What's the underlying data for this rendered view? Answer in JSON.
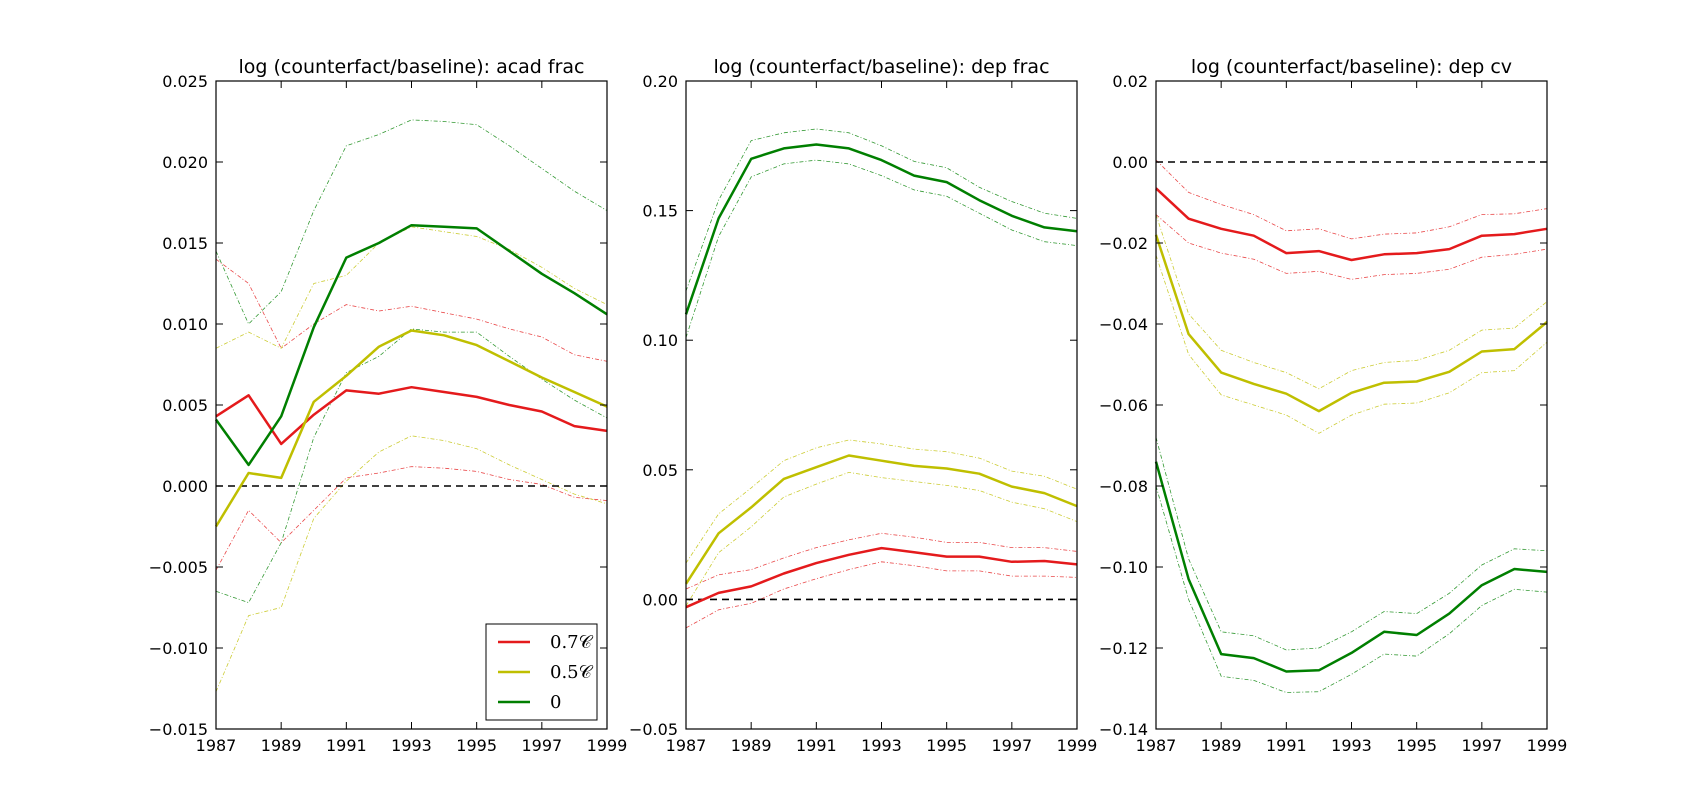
{
  "colors": {
    "red": "#e41a1c",
    "yellow": "#bfbf00",
    "green": "#007f00",
    "zero_line": "#000000"
  },
  "legend": {
    "items": [
      {
        "label": "0.7𝒞",
        "color": "#e41a1c"
      },
      {
        "label": "0.5𝒞",
        "color": "#bfbf00"
      },
      {
        "label": "0",
        "color": "#007f00"
      }
    ],
    "panel": 0,
    "placement": "lower-right"
  },
  "chart_data": [
    {
      "type": "line",
      "title": "log (counterfact/baseline): acad frac",
      "xlabel": "",
      "ylabel": "",
      "x": [
        1987,
        1988,
        1989,
        1990,
        1991,
        1992,
        1993,
        1994,
        1995,
        1996,
        1997,
        1998,
        1999
      ],
      "xlim": [
        1987,
        1999
      ],
      "xticks": [
        "1987",
        "1989",
        "1991",
        "1993",
        "1995",
        "1997",
        "1999"
      ],
      "ylim": [
        -0.015,
        0.025
      ],
      "yticks": [
        "−0.015",
        "−0.010",
        "−0.005",
        "0.000",
        "0.005",
        "0.010",
        "0.015",
        "0.020",
        "0.025"
      ],
      "zero_line": true,
      "series": [
        {
          "name": "0.7𝒞",
          "color": "#e41a1c",
          "values": [
            0.0043,
            0.0056,
            0.0026,
            0.0044,
            0.0059,
            0.0057,
            0.0061,
            0.0058,
            0.0055,
            0.005,
            0.0046,
            0.0037,
            0.0034
          ],
          "upper": [
            0.014,
            0.0125,
            0.0085,
            0.01,
            0.0112,
            0.0108,
            0.0111,
            0.0107,
            0.0103,
            0.0097,
            0.0092,
            0.0081,
            0.0077
          ],
          "lower": [
            -0.0052,
            -0.0015,
            -0.0035,
            -0.0015,
            0.0005,
            0.0008,
            0.0012,
            0.0011,
            0.0009,
            0.0004,
            0.0001,
            -0.0007,
            -0.0009
          ]
        },
        {
          "name": "0.5𝒞",
          "color": "#bfbf00",
          "values": [
            -0.0025,
            0.0008,
            0.0005,
            0.0052,
            0.0068,
            0.0086,
            0.0096,
            0.0093,
            0.0087,
            0.0077,
            0.0067,
            0.0058,
            0.0049
          ],
          "upper": [
            0.0085,
            0.0095,
            0.0085,
            0.0125,
            0.013,
            0.015,
            0.016,
            0.0157,
            0.0154,
            0.0146,
            0.0135,
            0.0122,
            0.0112
          ],
          "lower": [
            -0.0127,
            -0.008,
            -0.0075,
            -0.002,
            0.0003,
            0.0021,
            0.0031,
            0.0028,
            0.0023,
            0.0013,
            0.0004,
            -0.0005,
            -0.0011
          ]
        },
        {
          "name": "0",
          "color": "#007f00",
          "values": [
            0.0041,
            0.0013,
            0.0043,
            0.0098,
            0.0141,
            0.015,
            0.0161,
            0.016,
            0.0159,
            0.0145,
            0.0131,
            0.0119,
            0.0106
          ],
          "upper": [
            0.0145,
            0.01,
            0.012,
            0.017,
            0.021,
            0.0217,
            0.0226,
            0.0225,
            0.0223,
            0.021,
            0.0196,
            0.0182,
            0.017
          ],
          "lower": [
            -0.0065,
            -0.0072,
            -0.0035,
            0.003,
            0.007,
            0.008,
            0.0097,
            0.0095,
            0.0095,
            0.008,
            0.0066,
            0.0053,
            0.0042
          ]
        }
      ]
    },
    {
      "type": "line",
      "title": "log (counterfact/baseline): dep frac",
      "xlabel": "",
      "ylabel": "",
      "x": [
        1987,
        1988,
        1989,
        1990,
        1991,
        1992,
        1993,
        1994,
        1995,
        1996,
        1997,
        1998,
        1999
      ],
      "xlim": [
        1987,
        1999
      ],
      "xticks": [
        "1987",
        "1989",
        "1991",
        "1993",
        "1995",
        "1997",
        "1999"
      ],
      "ylim": [
        -0.05,
        0.2
      ],
      "yticks": [
        "−0.05",
        "0.00",
        "0.05",
        "0.10",
        "0.15",
        "0.20"
      ],
      "zero_line": true,
      "series": [
        {
          "name": "0.7𝒞",
          "color": "#e41a1c",
          "values": [
            -0.003,
            0.0025,
            0.005,
            0.01,
            0.014,
            0.0172,
            0.0198,
            0.0182,
            0.0165,
            0.0165,
            0.0145,
            0.0148,
            0.0135
          ],
          "upper": [
            0.004,
            0.0095,
            0.0115,
            0.016,
            0.02,
            0.023,
            0.0255,
            0.024,
            0.022,
            0.022,
            0.02,
            0.02,
            0.0185
          ],
          "lower": [
            -0.011,
            -0.004,
            -0.0015,
            0.004,
            0.008,
            0.0115,
            0.0145,
            0.013,
            0.011,
            0.011,
            0.009,
            0.009,
            0.0085
          ]
        },
        {
          "name": "0.5𝒞",
          "color": "#bfbf00",
          "values": [
            0.006,
            0.0255,
            0.0355,
            0.0465,
            0.051,
            0.0555,
            0.0535,
            0.0515,
            0.0505,
            0.0485,
            0.0435,
            0.041,
            0.036
          ],
          "upper": [
            0.014,
            0.033,
            0.043,
            0.0535,
            0.0585,
            0.0615,
            0.06,
            0.058,
            0.057,
            0.0545,
            0.0495,
            0.0475,
            0.0425
          ],
          "lower": [
            -0.0025,
            0.018,
            0.028,
            0.0395,
            0.0445,
            0.049,
            0.047,
            0.0455,
            0.044,
            0.042,
            0.0375,
            0.035,
            0.03
          ]
        },
        {
          "name": "0",
          "color": "#007f00",
          "values": [
            0.11,
            0.147,
            0.17,
            0.174,
            0.1755,
            0.174,
            0.1695,
            0.1635,
            0.161,
            0.154,
            0.148,
            0.1435,
            0.142
          ],
          "upper": [
            0.119,
            0.154,
            0.177,
            0.18,
            0.1815,
            0.18,
            0.175,
            0.169,
            0.1665,
            0.159,
            0.1535,
            0.149,
            0.147
          ],
          "lower": [
            0.101,
            0.14,
            0.163,
            0.168,
            0.1695,
            0.168,
            0.1635,
            0.158,
            0.1555,
            0.149,
            0.1425,
            0.138,
            0.1365
          ]
        }
      ]
    },
    {
      "type": "line",
      "title": "log (counterfact/baseline): dep cv",
      "xlabel": "",
      "ylabel": "",
      "x": [
        1987,
        1988,
        1989,
        1990,
        1991,
        1992,
        1993,
        1994,
        1995,
        1996,
        1997,
        1998,
        1999
      ],
      "xlim": [
        1987,
        1999
      ],
      "xticks": [
        "1987",
        "1989",
        "1991",
        "1993",
        "1995",
        "1997",
        "1999"
      ],
      "ylim": [
        -0.14,
        0.02
      ],
      "yticks": [
        "−0.14",
        "−0.12",
        "−0.10",
        "−0.08",
        "−0.06",
        "−0.04",
        "−0.02",
        "0.00",
        "0.02"
      ],
      "zero_line": true,
      "series": [
        {
          "name": "0.7𝒞",
          "color": "#e41a1c",
          "values": [
            -0.0065,
            -0.014,
            -0.0165,
            -0.0182,
            -0.0225,
            -0.022,
            -0.0242,
            -0.0228,
            -0.0225,
            -0.0215,
            -0.0182,
            -0.0178,
            -0.0165
          ],
          "upper": [
            0.0005,
            -0.0075,
            -0.0105,
            -0.013,
            -0.017,
            -0.0165,
            -0.019,
            -0.0178,
            -0.0175,
            -0.016,
            -0.013,
            -0.0128,
            -0.0115
          ],
          "lower": [
            -0.013,
            -0.02,
            -0.0225,
            -0.024,
            -0.0275,
            -0.027,
            -0.029,
            -0.0278,
            -0.0275,
            -0.0265,
            -0.0235,
            -0.0228,
            -0.0215
          ]
        },
        {
          "name": "0.5𝒞",
          "color": "#bfbf00",
          "values": [
            -0.018,
            -0.0425,
            -0.052,
            -0.0548,
            -0.0572,
            -0.0615,
            -0.057,
            -0.0545,
            -0.0542,
            -0.0518,
            -0.0468,
            -0.0462,
            -0.0395
          ],
          "upper": [
            -0.013,
            -0.0375,
            -0.0465,
            -0.0495,
            -0.052,
            -0.056,
            -0.0515,
            -0.0495,
            -0.049,
            -0.0465,
            -0.0415,
            -0.041,
            -0.0345
          ],
          "lower": [
            -0.023,
            -0.0475,
            -0.0575,
            -0.06,
            -0.0625,
            -0.067,
            -0.0625,
            -0.0598,
            -0.0595,
            -0.057,
            -0.052,
            -0.0515,
            -0.0445
          ]
        },
        {
          "name": "0",
          "color": "#007f00",
          "values": [
            -0.074,
            -0.103,
            -0.1215,
            -0.1225,
            -0.1258,
            -0.1255,
            -0.1212,
            -0.116,
            -0.1168,
            -0.1115,
            -0.1045,
            -0.1005,
            -0.1012
          ],
          "upper": [
            -0.068,
            -0.098,
            -0.116,
            -0.117,
            -0.1205,
            -0.12,
            -0.116,
            -0.111,
            -0.1115,
            -0.1065,
            -0.0995,
            -0.0955,
            -0.096
          ],
          "lower": [
            -0.08,
            -0.108,
            -0.127,
            -0.128,
            -0.131,
            -0.1308,
            -0.1265,
            -0.1215,
            -0.122,
            -0.1165,
            -0.1095,
            -0.1055,
            -0.1062
          ]
        }
      ]
    }
  ]
}
